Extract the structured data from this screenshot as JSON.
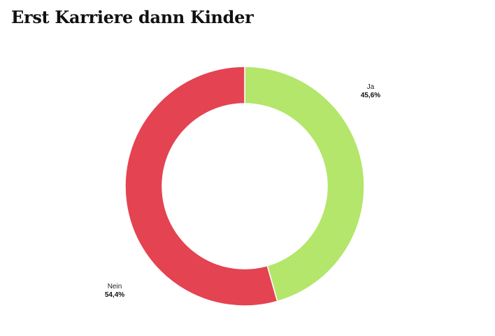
{
  "title": "Erst Karriere dann Kinder",
  "chart_data": {
    "type": "pie",
    "title": "Erst Karriere dann Kinder",
    "donut": true,
    "slices": [
      {
        "label": "Ja",
        "value": 45.6,
        "display": "45,6%",
        "color": "#b3e66a"
      },
      {
        "label": "Nein",
        "value": 54.4,
        "display": "54,4%",
        "color": "#e44352"
      }
    ],
    "start_angle_deg": 0,
    "direction": "clockwise",
    "legend": "none"
  }
}
